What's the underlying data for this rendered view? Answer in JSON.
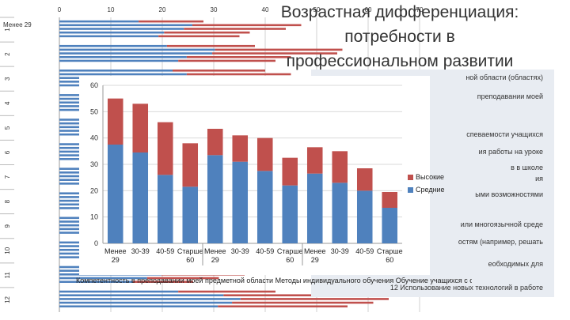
{
  "slide": {
    "title_lines": [
      "Возрастная дифференциация:",
      "потребности в",
      "профессиональном развитии"
    ]
  },
  "background_chart": {
    "x_ticks": [
      "0",
      "10",
      "20",
      "30",
      "40",
      "50",
      "60",
      "70"
    ],
    "row_labels": [
      "1",
      "2",
      "3",
      "4",
      "5",
      "6",
      "7",
      "8",
      "9",
      "10",
      "11",
      "12"
    ],
    "first_category_label": "Менее 29",
    "rows": [
      [
        28,
        47,
        44,
        37,
        35
      ],
      [
        38,
        55,
        54,
        45,
        42
      ],
      [
        40,
        45,
        40,
        35,
        30
      ],
      [
        30,
        42,
        44,
        40,
        33
      ],
      [
        33,
        48,
        47,
        39,
        34
      ],
      [
        29,
        40,
        42,
        37,
        31
      ],
      [
        27,
        39,
        40,
        36,
        30
      ],
      [
        25,
        38,
        39,
        33,
        28
      ],
      [
        24,
        36,
        37,
        32,
        27
      ],
      [
        26,
        41,
        43,
        35,
        29
      ],
      [
        23,
        35,
        36,
        31,
        26
      ],
      [
        42,
        58,
        64,
        61,
        56
      ]
    ],
    "colors": {
      "blue": "#4f81bd",
      "red": "#c0504d"
    }
  },
  "table_rows": [
    {
      "text": "ной области (областях)"
    },
    {
      "text": "преподавании моей"
    },
    {
      "text": ""
    },
    {
      "text": "спеваемости учащихся"
    },
    {
      "text": "ия работы на уроке"
    },
    {
      "text": "в в школе"
    },
    {
      "text": "ия"
    },
    {
      "text": "ыми возможностями"
    },
    {
      "text": ""
    },
    {
      "text": "или многоязычной среде"
    },
    {
      "text": "остям (например, решать"
    },
    {
      "text": "еобходимых для"
    },
    {
      "text": ""
    },
    {
      "text": "12   Использование новых технологий в работе"
    }
  ],
  "chart_data": {
    "type": "bar",
    "stacked": true,
    "categories": [
      "Менее 29",
      "30-39",
      "40-59",
      "Старше 60",
      "Менее 29",
      "30-39",
      "40-59",
      "Старше 60",
      "Менее 29",
      "30-39",
      "40-59",
      "Старше 60"
    ],
    "series": [
      {
        "name": "Средние",
        "values": [
          37.5,
          34.5,
          26,
          21.5,
          33.5,
          31,
          27.5,
          22,
          26.5,
          23,
          20,
          13.5
        ],
        "color": "#4f81bd"
      },
      {
        "name": "Высокие",
        "values": [
          17.5,
          18.5,
          20,
          16.5,
          10,
          10,
          12.5,
          10.5,
          10,
          12,
          8.5,
          6
        ],
        "color": "#c0504d"
      }
    ],
    "ylim": [
      0,
      60
    ],
    "yticks": [
      0,
      10,
      20,
      30,
      40,
      50,
      60
    ],
    "legend_order": [
      "Высокие",
      "Средние"
    ],
    "legend_position": "right",
    "group_labels": [
      "Компетентность в преподавании моей предметной области",
      "Методы индивидуального обучения",
      "Обучение учащихся с ограниченными возможностями здоровья"
    ],
    "footer_text": "Компетентность в преподавании моей предметной области Методы индивидуального обучения Обучение учащихся с ограниченными возможностями здоровья"
  }
}
